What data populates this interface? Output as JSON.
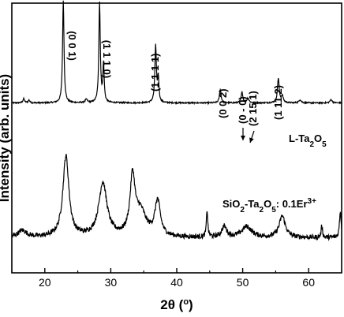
{
  "chart_data": {
    "type": "line",
    "xlabel_main": "2θ (",
    "xlabel_sup": "o",
    "xlabel_end": ")",
    "ylabel": "Intensity (arb. units)",
    "xlim": [
      15,
      65
    ],
    "ylim": [
      0,
      100
    ],
    "x_ticks": [
      20,
      30,
      40,
      50,
      60
    ],
    "y_ticks_shown": false,
    "grid": false,
    "series": [
      {
        "label_parts": [
          "L-Ta",
          "2",
          "O",
          "5"
        ],
        "color": "#000000",
        "peaks": [
          {
            "x": 16.8,
            "h": 1.5,
            "w": 0.15
          },
          {
            "x": 17.6,
            "h": 1.0,
            "w": 0.15
          },
          {
            "x": 22.8,
            "h": 38,
            "w": 0.13
          },
          {
            "x": 26.3,
            "h": 1.2,
            "w": 0.2
          },
          {
            "x": 28.3,
            "h": 37,
            "w": 0.13
          },
          {
            "x": 28.9,
            "h": 14,
            "w": 0.12
          },
          {
            "x": 36.8,
            "h": 21,
            "w": 0.14
          },
          {
            "x": 37.2,
            "h": 9,
            "w": 0.12
          },
          {
            "x": 46.6,
            "h": 5,
            "w": 0.15
          },
          {
            "x": 49.9,
            "h": 4,
            "w": 0.15
          },
          {
            "x": 50.8,
            "h": 1.8,
            "w": 0.18
          },
          {
            "x": 55.4,
            "h": 9,
            "w": 0.16
          },
          {
            "x": 56.0,
            "h": 2.5,
            "w": 0.18
          },
          {
            "x": 58.7,
            "h": 1.2,
            "w": 0.2
          },
          {
            "x": 63.4,
            "h": 1.2,
            "w": 0.2
          }
        ],
        "baseline": 63,
        "noise": 0.25
      },
      {
        "label_parts": [
          "SiO",
          "2",
          "-Ta",
          "2",
          "O",
          "5",
          ": 0.1Er",
          "3+"
        ],
        "color": "#000000",
        "peaks": [
          {
            "x": 16.6,
            "h": 2.5,
            "w": 0.8
          },
          {
            "x": 23.2,
            "h": 30,
            "w": 0.55
          },
          {
            "x": 28.8,
            "h": 20,
            "w": 0.75
          },
          {
            "x": 33.3,
            "h": 21,
            "w": 0.45
          },
          {
            "x": 34.5,
            "h": 9,
            "w": 1.0
          },
          {
            "x": 37.1,
            "h": 13,
            "w": 0.5
          },
          {
            "x": 44.6,
            "h": 10,
            "w": 0.12
          },
          {
            "x": 47.2,
            "h": 4,
            "w": 0.45
          },
          {
            "x": 50.6,
            "h": 4,
            "w": 0.9
          },
          {
            "x": 56.0,
            "h": 8,
            "w": 0.55
          },
          {
            "x": 62.0,
            "h": 4.5,
            "w": 0.12
          },
          {
            "x": 64.8,
            "h": 10,
            "w": 0.15
          }
        ],
        "baseline": 13,
        "noise": 0.9
      }
    ],
    "annotations": [
      {
        "text": "(0 0 1)",
        "x": 22.8,
        "rotated": false
      },
      {
        "text": "(1 1 1 0)",
        "x": 28.3,
        "rotated": false
      },
      {
        "text": "(1 1 1 1)",
        "x": 36.8,
        "rotated": true
      },
      {
        "text": "(0 0 2)",
        "x": 46.6,
        "rotated": true
      },
      {
        "text": "(0 - 0)",
        "x": 49.9,
        "rotated": true
      },
      {
        "text": "(2 15 1)",
        "x": 50.8,
        "rotated": true
      },
      {
        "text": "(1 11 2)",
        "x": 55.4,
        "rotated": true
      }
    ]
  }
}
